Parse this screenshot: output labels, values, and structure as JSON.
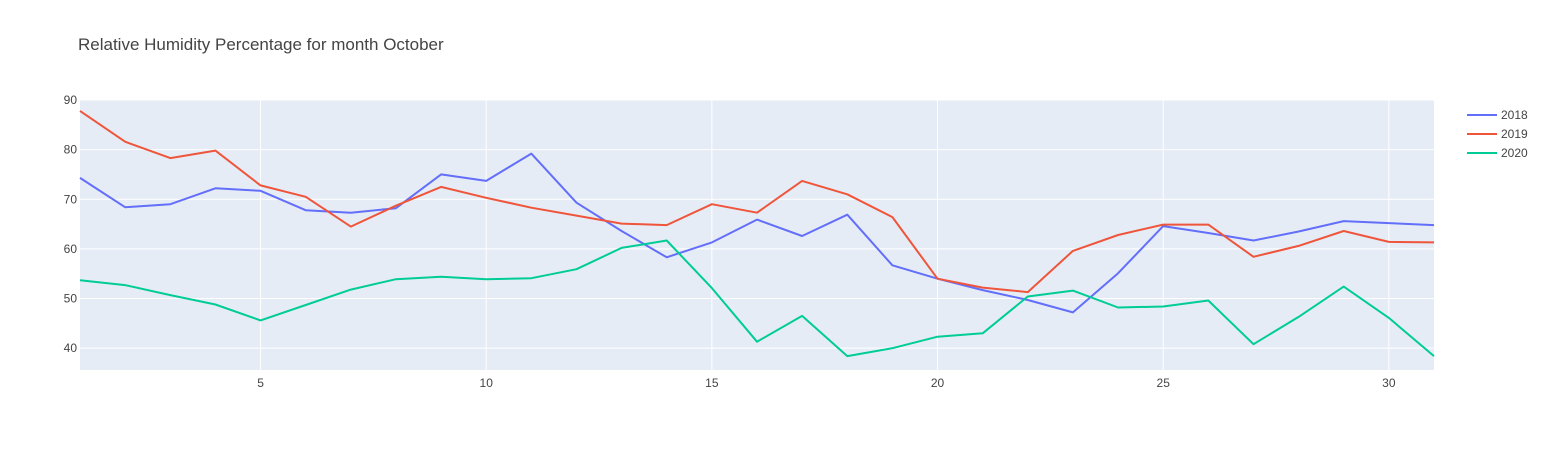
{
  "chart_data": {
    "type": "line",
    "title": "Relative Humidity Percentage for month October",
    "xlabel": "",
    "ylabel": "",
    "xlim": [
      1,
      31
    ],
    "ylim": [
      35.6,
      90
    ],
    "x_ticks": [
      5,
      10,
      15,
      20,
      25,
      30
    ],
    "y_ticks": [
      40,
      50,
      60,
      70,
      80,
      90
    ],
    "grid": true,
    "legend_position": "top-right",
    "x": [
      1,
      2,
      3,
      4,
      5,
      6,
      7,
      8,
      9,
      10,
      11,
      12,
      13,
      14,
      15,
      16,
      17,
      18,
      19,
      20,
      21,
      22,
      23,
      24,
      25,
      26,
      27,
      28,
      29,
      30,
      31
    ],
    "series": [
      {
        "name": "2018",
        "color": "#636efa",
        "values": [
          74.3,
          68.4,
          69.0,
          72.2,
          71.7,
          67.8,
          67.3,
          68.2,
          75.0,
          73.7,
          79.2,
          69.3,
          63.6,
          58.3,
          61.3,
          65.9,
          62.6,
          66.9,
          56.7,
          54.0,
          51.7,
          49.7,
          47.2,
          55.1,
          64.6,
          63.2,
          61.7,
          63.5,
          65.6,
          65.2,
          64.8
        ]
      },
      {
        "name": "2019",
        "color": "#ef553b",
        "values": [
          87.8,
          81.6,
          78.3,
          79.8,
          72.8,
          70.5,
          64.5,
          68.7,
          72.5,
          70.3,
          68.3,
          66.7,
          65.1,
          64.8,
          69.0,
          67.3,
          73.7,
          71.0,
          66.4,
          54.0,
          52.2,
          51.3,
          59.6,
          62.8,
          64.9,
          64.9,
          58.4,
          60.6,
          63.6,
          61.4,
          61.3
        ]
      },
      {
        "name": "2020",
        "color": "#00cc96",
        "values": [
          53.7,
          52.7,
          50.7,
          48.8,
          45.6,
          48.7,
          51.8,
          53.9,
          54.4,
          53.9,
          54.1,
          55.9,
          60.2,
          61.7,
          52.1,
          41.3,
          46.5,
          38.4,
          40.0,
          42.3,
          43.0,
          50.4,
          51.6,
          48.2,
          48.4,
          49.6,
          40.8,
          46.3,
          52.4,
          46.1,
          38.4
        ]
      }
    ]
  }
}
